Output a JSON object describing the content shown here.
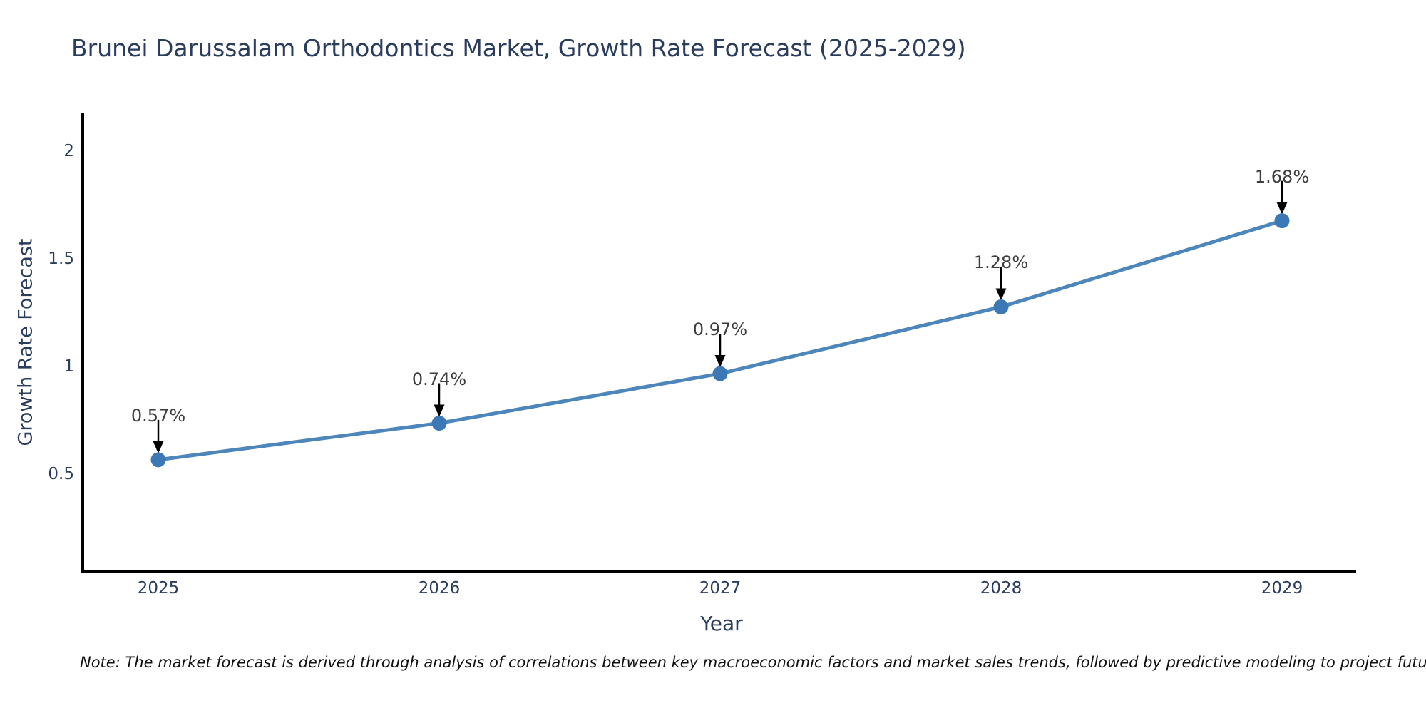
{
  "chart_data": {
    "type": "line",
    "title": "Brunei Darussalam Orthodontics Market, Growth Rate Forecast (2025-2029)",
    "xlabel": "Year",
    "ylabel": "Growth Rate Forecast",
    "categories": [
      "2025",
      "2026",
      "2027",
      "2028",
      "2029"
    ],
    "values": [
      0.57,
      0.74,
      0.97,
      1.28,
      1.68
    ],
    "point_labels": [
      "0.57%",
      "0.74%",
      "0.97%",
      "1.28%",
      "1.68%"
    ],
    "yticks": [
      0.5,
      1,
      1.5,
      2
    ],
    "ytick_labels": [
      "0.5",
      "1",
      "1.5",
      "2"
    ],
    "ylim": [
      0.05,
      2.2
    ],
    "grid": false,
    "legend_position": "none",
    "line_color": "#4d86ba",
    "marker_color": "#3b78b5",
    "arrow_color": "#000000",
    "axis_color": "#000000",
    "title_color": "#2b3d5c",
    "tick_color": "#2b3d5c",
    "annotation_text_color": "#3d3d3d"
  },
  "note": {
    "text": "Note: The market forecast is derived through analysis of correlations between key macroeconomic factors and market sales trends, followed by predictive modeling to project future sales"
  }
}
